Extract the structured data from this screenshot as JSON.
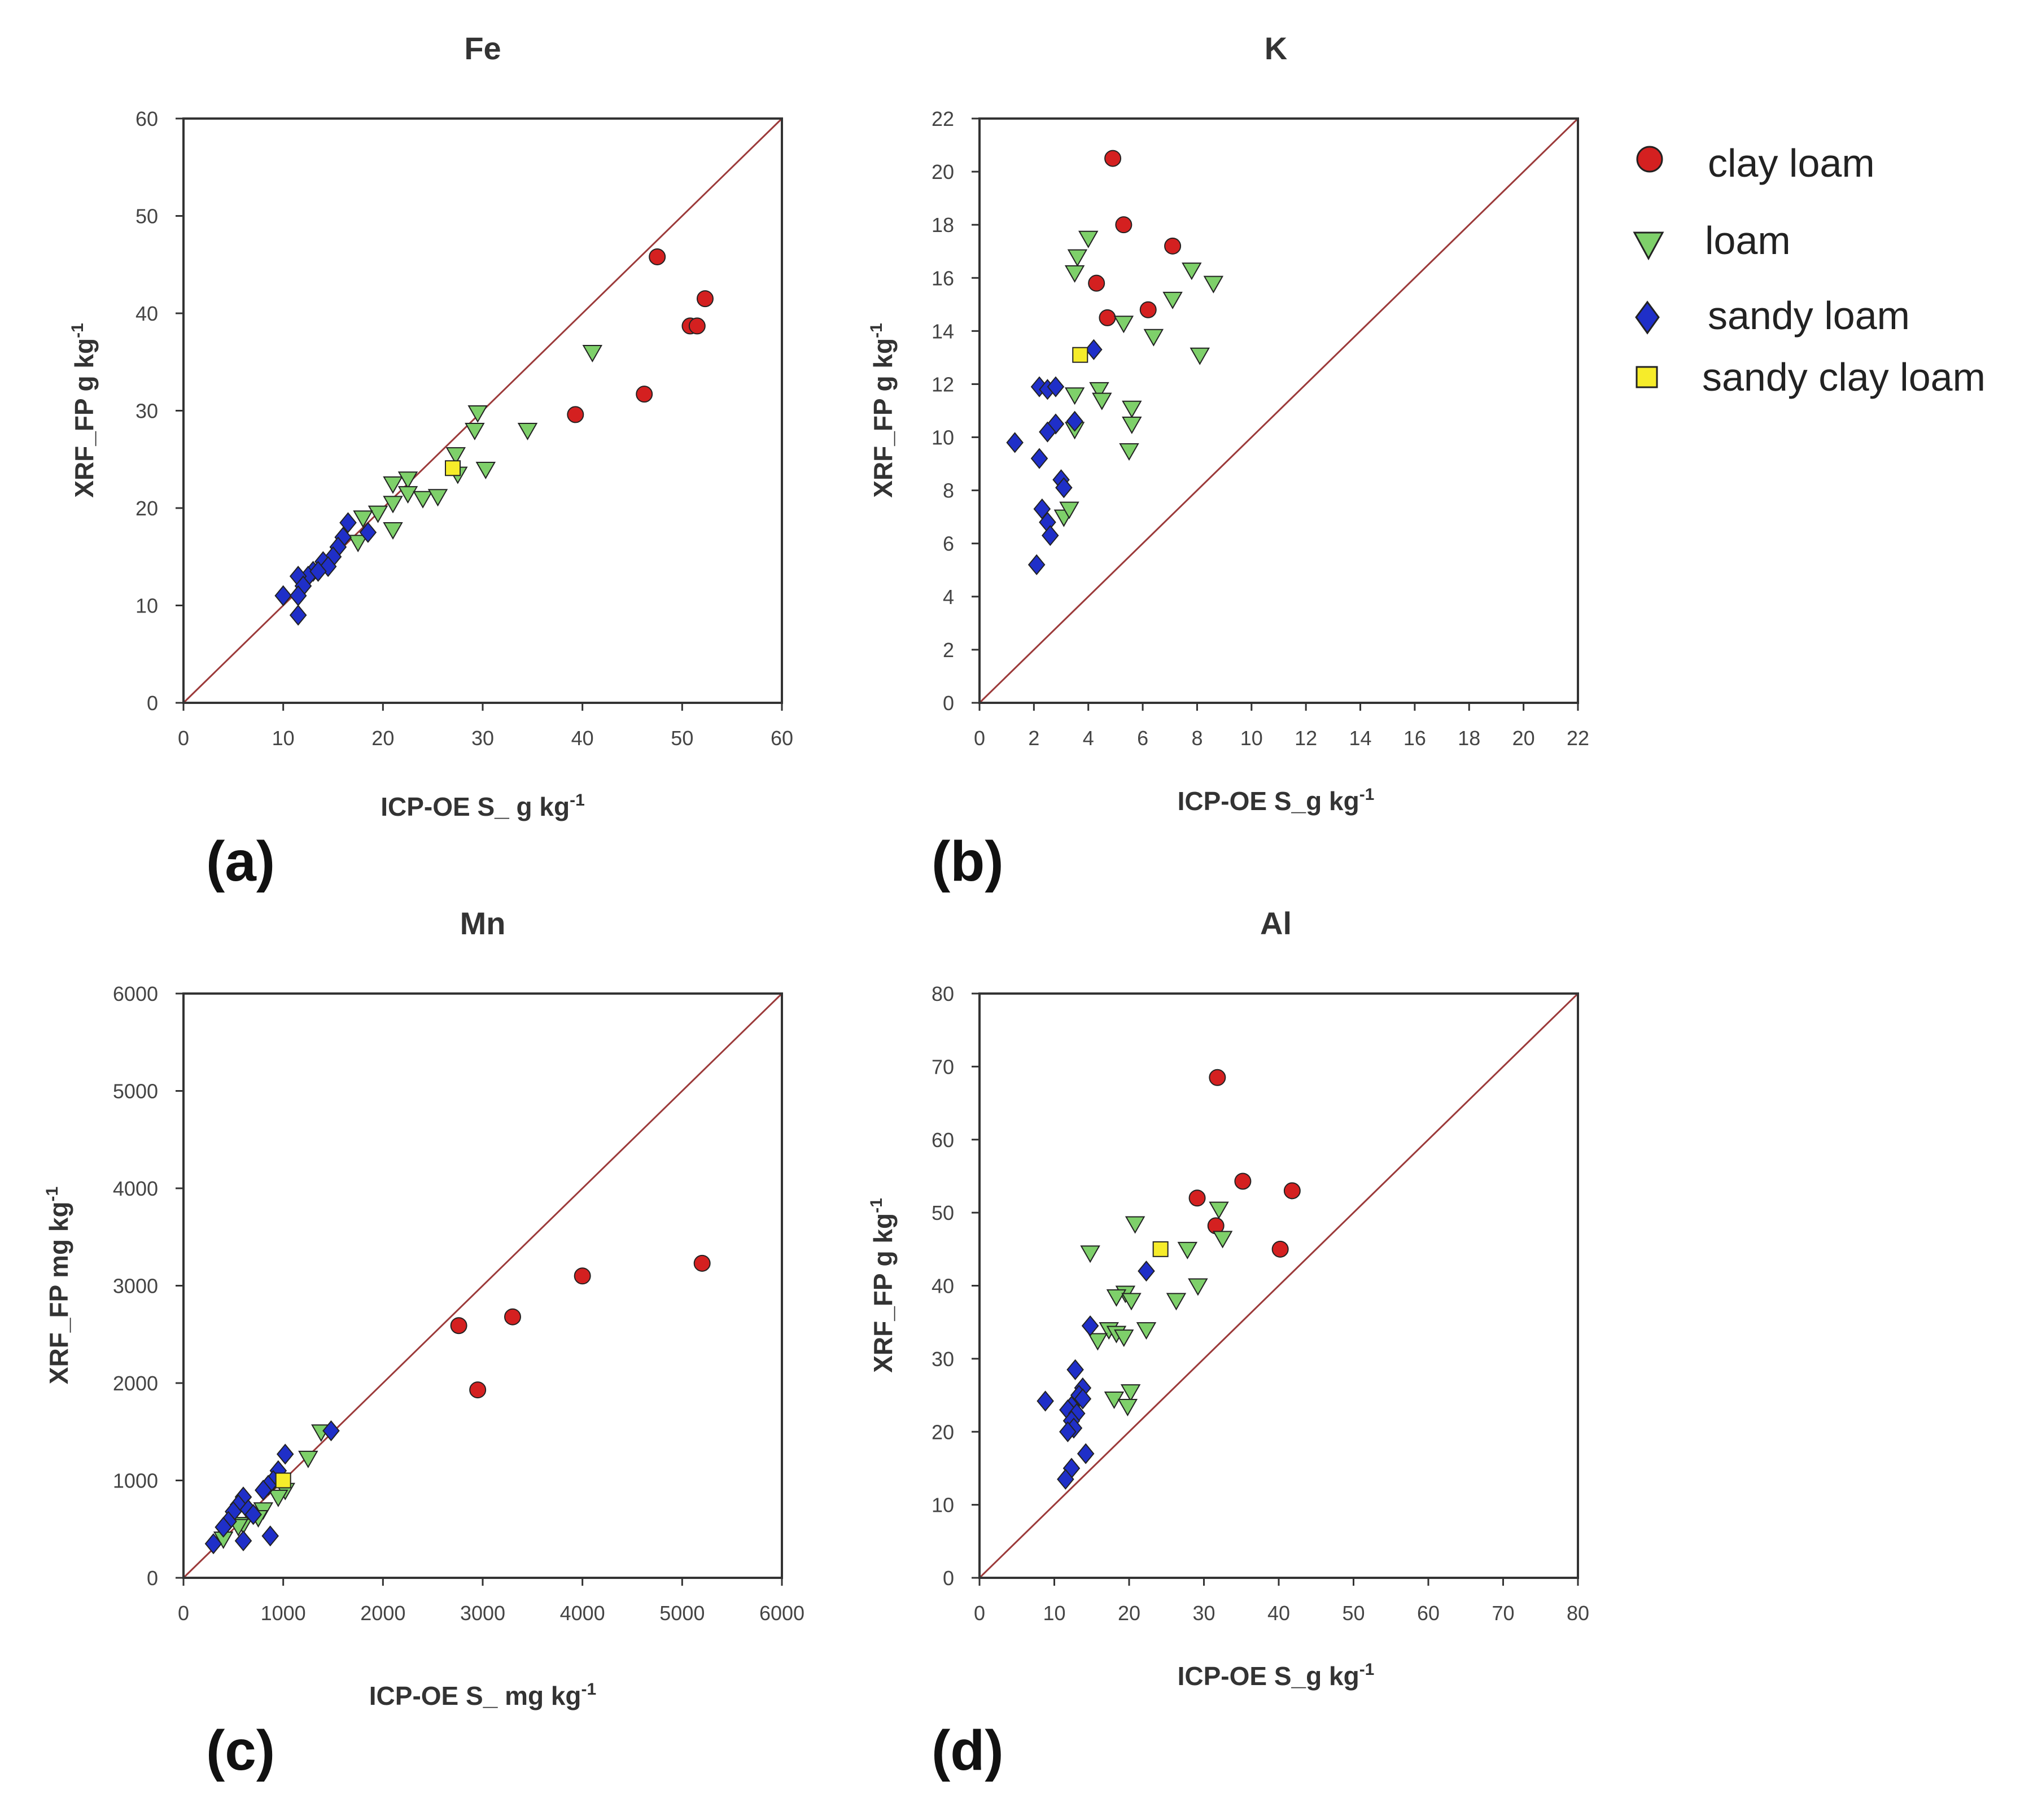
{
  "colors": {
    "clay_loam": "#d42020",
    "loam": "#7ed06a",
    "sandy_loam": "#1f2fc8",
    "sandy_clay_loam": "#f6ec2a",
    "identity_line": "#9c3a3a",
    "axis": "#333333"
  },
  "legend": [
    {
      "key": "clay_loam",
      "label": "clay loam",
      "marker": "circle"
    },
    {
      "key": "loam",
      "label": "loam",
      "marker": "triangle-down"
    },
    {
      "key": "sandy_loam",
      "label": "sandy loam",
      "marker": "diamond"
    },
    {
      "key": "sandy_clay_loam",
      "label": "sandy clay loam",
      "marker": "square"
    }
  ],
  "chart_data": [
    {
      "id": "fe",
      "type": "scatter",
      "title": "Fe",
      "panel_label": "(a)",
      "xlabel": "ICP-OE S_ g kg",
      "xlabel_sup": "-1",
      "ylabel": "XRF_FP g kg",
      "ylabel_sup": "-1",
      "xlim": [
        0,
        60
      ],
      "ylim": [
        0,
        60
      ],
      "xticks": [
        0,
        10,
        20,
        30,
        40,
        50,
        60
      ],
      "yticks": [
        0,
        10,
        20,
        30,
        40,
        50,
        60
      ],
      "identity_line": [
        [
          0,
          0
        ],
        [
          60,
          60
        ]
      ],
      "series": [
        {
          "name": "clay loam",
          "key": "clay_loam",
          "points": [
            [
              47.5,
              45.8
            ],
            [
              52.3,
              41.5
            ],
            [
              50.8,
              38.7
            ],
            [
              51.5,
              38.7
            ],
            [
              46.2,
              31.7
            ],
            [
              39.3,
              29.6
            ]
          ]
        },
        {
          "name": "loam",
          "key": "loam",
          "points": [
            [
              41,
              36
            ],
            [
              29.5,
              29.8
            ],
            [
              29.2,
              28
            ],
            [
              27.3,
              25.5
            ],
            [
              34.5,
              28
            ],
            [
              30.3,
              24
            ],
            [
              27.5,
              23.5
            ],
            [
              21,
              22.5
            ],
            [
              22.5,
              23
            ],
            [
              22.5,
              21.5
            ],
            [
              24,
              21
            ],
            [
              25.5,
              21.2
            ],
            [
              21,
              20.5
            ],
            [
              19.5,
              19.5
            ],
            [
              21,
              17.8
            ],
            [
              18,
              19
            ],
            [
              17.5,
              16.5
            ]
          ]
        },
        {
          "name": "sandy loam",
          "key": "sandy_loam",
          "points": [
            [
              16.5,
              18.5
            ],
            [
              16,
              17
            ],
            [
              18.5,
              17.5
            ],
            [
              15.5,
              16
            ],
            [
              15,
              15
            ],
            [
              14,
              14.5
            ],
            [
              13,
              13.5
            ],
            [
              12.5,
              13
            ],
            [
              14.5,
              14
            ],
            [
              13.5,
              13.5
            ],
            [
              11.5,
              13
            ],
            [
              12,
              12
            ],
            [
              10,
              11
            ],
            [
              11.5,
              11
            ],
            [
              11.5,
              9
            ]
          ]
        },
        {
          "name": "sandy clay loam",
          "key": "sandy_clay_loam",
          "points": [
            [
              27,
              24.1
            ]
          ]
        }
      ]
    },
    {
      "id": "k",
      "type": "scatter",
      "title": "K",
      "panel_label": "(b)",
      "xlabel": "ICP-OE S_g kg",
      "xlabel_sup": "-1",
      "ylabel": "XRF_FP g kg",
      "ylabel_sup": "-1",
      "xlim": [
        0,
        22
      ],
      "ylim": [
        0,
        22
      ],
      "xticks": [
        0,
        2,
        4,
        6,
        8,
        10,
        12,
        14,
        16,
        18,
        20,
        22
      ],
      "yticks": [
        0,
        2,
        4,
        6,
        8,
        10,
        12,
        14,
        16,
        18,
        20,
        22
      ],
      "identity_line": [
        [
          0,
          0
        ],
        [
          22,
          22
        ]
      ],
      "series": [
        {
          "name": "clay loam",
          "key": "clay_loam",
          "points": [
            [
              4.9,
              20.5
            ],
            [
              5.3,
              18
            ],
            [
              7.1,
              17.2
            ],
            [
              4.3,
              15.8
            ],
            [
              4.7,
              14.5
            ],
            [
              6.2,
              14.8
            ]
          ]
        },
        {
          "name": "loam",
          "key": "loam",
          "points": [
            [
              4,
              17.5
            ],
            [
              3.6,
              16.8
            ],
            [
              3.5,
              16.2
            ],
            [
              7.8,
              16.3
            ],
            [
              8.6,
              15.8
            ],
            [
              7.1,
              15.2
            ],
            [
              5.3,
              14.3
            ],
            [
              6.4,
              13.8
            ],
            [
              8.1,
              13.1
            ],
            [
              3.5,
              11.6
            ],
            [
              4.4,
              11.8
            ],
            [
              4.5,
              11.4
            ],
            [
              5.6,
              11.1
            ],
            [
              3.5,
              10.3
            ],
            [
              5.6,
              10.5
            ],
            [
              5.5,
              9.5
            ],
            [
              3.1,
              7
            ],
            [
              3.3,
              7.3
            ]
          ]
        },
        {
          "name": "sandy loam",
          "key": "sandy_loam",
          "points": [
            [
              4.2,
              13.3
            ],
            [
              2.2,
              11.9
            ],
            [
              2.5,
              11.8
            ],
            [
              2.8,
              11.9
            ],
            [
              2.8,
              10.5
            ],
            [
              2.5,
              10.2
            ],
            [
              3.5,
              10.6
            ],
            [
              1.3,
              9.8
            ],
            [
              2.2,
              9.2
            ],
            [
              3,
              8.4
            ],
            [
              3.1,
              8.1
            ],
            [
              2.3,
              7.3
            ],
            [
              2.5,
              6.8
            ],
            [
              2.6,
              6.3
            ],
            [
              2.1,
              5.2
            ]
          ]
        },
        {
          "name": "sandy clay loam",
          "key": "sandy_clay_loam",
          "points": [
            [
              3.7,
              13.1
            ]
          ]
        }
      ]
    },
    {
      "id": "mn",
      "type": "scatter",
      "title": "Mn",
      "panel_label": "(c)",
      "xlabel": "ICP-OE S_ mg kg",
      "xlabel_sup": "-1",
      "ylabel": "XRF_FP mg kg",
      "ylabel_sup": "-1",
      "xlim": [
        0,
        6000
      ],
      "ylim": [
        0,
        6000
      ],
      "xticks": [
        0,
        1000,
        2000,
        3000,
        4000,
        5000,
        6000
      ],
      "yticks": [
        0,
        1000,
        2000,
        3000,
        4000,
        5000,
        6000
      ],
      "identity_line": [
        [
          0,
          0
        ],
        [
          6000,
          6000
        ]
      ],
      "series": [
        {
          "name": "clay loam",
          "key": "clay_loam",
          "points": [
            [
              5200,
              3230
            ],
            [
              4000,
              3100
            ],
            [
              3300,
              2680
            ],
            [
              2760,
              2590
            ],
            [
              2950,
              1930
            ]
          ]
        },
        {
          "name": "loam",
          "key": "loam",
          "points": [
            [
              1380,
              1500
            ],
            [
              1250,
              1230
            ],
            [
              1020,
              900
            ],
            [
              950,
              830
            ],
            [
              800,
              700
            ],
            [
              750,
              620
            ],
            [
              600,
              550
            ],
            [
              550,
              530
            ],
            [
              400,
              400
            ]
          ]
        },
        {
          "name": "sandy loam",
          "key": "sandy_loam",
          "points": [
            [
              1480,
              1510
            ],
            [
              1020,
              1270
            ],
            [
              950,
              1100
            ],
            [
              900,
              1000
            ],
            [
              850,
              950
            ],
            [
              800,
              900
            ],
            [
              600,
              830
            ],
            [
              550,
              750
            ],
            [
              500,
              680
            ],
            [
              650,
              700
            ],
            [
              450,
              580
            ],
            [
              400,
              520
            ],
            [
              300,
              350
            ],
            [
              600,
              380
            ],
            [
              870,
              430
            ],
            [
              700,
              650
            ]
          ]
        },
        {
          "name": "sandy clay loam",
          "key": "sandy_clay_loam",
          "points": [
            [
              1000,
              1000
            ]
          ]
        }
      ]
    },
    {
      "id": "al",
      "type": "scatter",
      "title": "Al",
      "panel_label": "(d)",
      "xlabel": "ICP-OE S_g kg",
      "xlabel_sup": "-1",
      "ylabel": "XRF_FP g kg",
      "ylabel_sup": "-1",
      "xlim": [
        0,
        80
      ],
      "ylim": [
        0,
        80
      ],
      "xticks": [
        0,
        10,
        20,
        30,
        40,
        50,
        60,
        70,
        80
      ],
      "yticks": [
        0,
        10,
        20,
        30,
        40,
        50,
        60,
        70,
        80
      ],
      "identity_line": [
        [
          0,
          0
        ],
        [
          80,
          80
        ]
      ],
      "series": [
        {
          "name": "clay loam",
          "key": "clay_loam",
          "points": [
            [
              31.8,
              68.5
            ],
            [
              35.2,
              54.3
            ],
            [
              41.8,
              53
            ],
            [
              29.1,
              52
            ],
            [
              31.6,
              48.2
            ],
            [
              40.2,
              45
            ]
          ]
        },
        {
          "name": "loam",
          "key": "loam",
          "points": [
            [
              32,
              50.5
            ],
            [
              32.5,
              46.5
            ],
            [
              20.8,
              48.5
            ],
            [
              14.8,
              44.5
            ],
            [
              27.8,
              45
            ],
            [
              29.2,
              40
            ],
            [
              19.5,
              39
            ],
            [
              18.3,
              38.5
            ],
            [
              20.3,
              38
            ],
            [
              26.3,
              38
            ],
            [
              17.3,
              34
            ],
            [
              18.3,
              33.5
            ],
            [
              19.3,
              33
            ],
            [
              22.3,
              34
            ],
            [
              15.8,
              32.5
            ],
            [
              20.2,
              25.5
            ],
            [
              18,
              24.5
            ],
            [
              19.8,
              23.5
            ]
          ]
        },
        {
          "name": "sandy loam",
          "key": "sandy_loam",
          "points": [
            [
              22.3,
              42
            ],
            [
              14.8,
              34.5
            ],
            [
              12.8,
              28.5
            ],
            [
              13.8,
              26
            ],
            [
              13.3,
              25
            ],
            [
              13.8,
              24.5
            ],
            [
              12.3,
              23.5
            ],
            [
              8.8,
              24.2
            ],
            [
              11.8,
              23
            ],
            [
              13,
              22.5
            ],
            [
              12.3,
              21.5
            ],
            [
              12.6,
              20.5
            ],
            [
              11.8,
              20
            ],
            [
              14.2,
              17
            ],
            [
              12.3,
              15
            ],
            [
              11.5,
              13.5
            ]
          ]
        },
        {
          "name": "sandy clay loam",
          "key": "sandy_clay_loam",
          "points": [
            [
              24.2,
              45
            ]
          ]
        }
      ]
    }
  ]
}
